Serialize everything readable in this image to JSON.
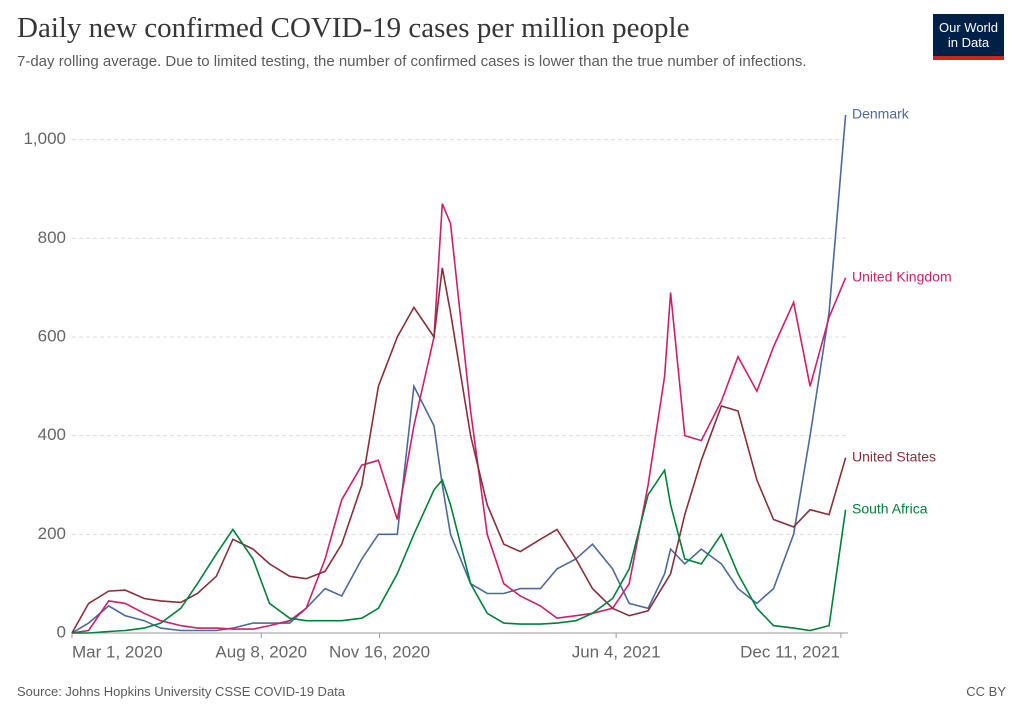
{
  "chart_data": {
    "type": "line",
    "title": "Daily new confirmed COVID-19 cases per million people",
    "subtitle": "7-day rolling average. Due to limited testing, the number of confirmed cases is lower than the true number of infections.",
    "source": "Source: Johns Hopkins University CSSE COVID-19 Data",
    "license": "CC BY",
    "logo": [
      "Our World",
      "in Data"
    ],
    "x": [
      "2020-03-01",
      "2020-03-15",
      "2020-04-01",
      "2020-04-15",
      "2020-05-01",
      "2020-05-15",
      "2020-06-01",
      "2020-06-15",
      "2020-07-01",
      "2020-07-15",
      "2020-08-01",
      "2020-08-15",
      "2020-09-01",
      "2020-09-15",
      "2020-10-01",
      "2020-10-15",
      "2020-11-01",
      "2020-11-15",
      "2020-12-01",
      "2020-12-15",
      "2021-01-01",
      "2021-01-08",
      "2021-01-15",
      "2021-02-01",
      "2021-02-15",
      "2021-03-01",
      "2021-03-15",
      "2021-04-01",
      "2021-04-15",
      "2021-05-01",
      "2021-05-15",
      "2021-06-01",
      "2021-06-15",
      "2021-07-01",
      "2021-07-15",
      "2021-07-20",
      "2021-08-01",
      "2021-08-15",
      "2021-09-01",
      "2021-09-15",
      "2021-10-01",
      "2021-10-15",
      "2021-11-01",
      "2021-11-15",
      "2021-12-01",
      "2021-12-15"
    ],
    "series": [
      {
        "name": "Denmark",
        "color": "#4c6a9c",
        "values": [
          0,
          20,
          55,
          35,
          25,
          10,
          5,
          5,
          5,
          10,
          20,
          20,
          20,
          50,
          90,
          75,
          150,
          200,
          200,
          500,
          420,
          300,
          200,
          100,
          80,
          80,
          90,
          90,
          130,
          150,
          180,
          130,
          60,
          50,
          120,
          170,
          140,
          170,
          140,
          90,
          60,
          90,
          200,
          400,
          650,
          1050
        ]
      },
      {
        "name": "United Kingdom",
        "color": "#ce1f6a",
        "values": [
          0,
          5,
          65,
          60,
          40,
          25,
          15,
          10,
          10,
          8,
          8,
          15,
          25,
          50,
          150,
          270,
          340,
          350,
          230,
          420,
          600,
          870,
          830,
          450,
          200,
          100,
          75,
          55,
          30,
          35,
          40,
          50,
          100,
          300,
          520,
          690,
          400,
          390,
          470,
          560,
          490,
          580,
          670,
          500,
          640,
          720
        ]
      },
      {
        "name": "United States",
        "color": "#883039",
        "values": [
          0,
          60,
          85,
          87,
          70,
          65,
          62,
          80,
          115,
          190,
          170,
          140,
          115,
          110,
          125,
          180,
          300,
          500,
          600,
          660,
          600,
          740,
          650,
          400,
          260,
          180,
          165,
          190,
          210,
          150,
          90,
          50,
          35,
          45,
          100,
          120,
          240,
          350,
          460,
          450,
          310,
          230,
          215,
          250,
          240,
          355
        ]
      },
      {
        "name": "South Africa",
        "color": "#00813a",
        "values": [
          0,
          0,
          3,
          5,
          10,
          20,
          50,
          100,
          160,
          210,
          150,
          60,
          30,
          25,
          25,
          25,
          30,
          50,
          120,
          200,
          290,
          310,
          260,
          100,
          40,
          20,
          18,
          18,
          20,
          25,
          40,
          70,
          130,
          280,
          330,
          260,
          150,
          140,
          200,
          120,
          50,
          15,
          10,
          5,
          15,
          250
        ]
      }
    ],
    "xlim": [
      "2020-03-01",
      "2021-12-17"
    ],
    "xticks": [
      {
        "value": "2020-03-01",
        "label": "Mar 1, 2020"
      },
      {
        "value": "2020-08-08",
        "label": "Aug 8, 2020"
      },
      {
        "value": "2020-11-16",
        "label": "Nov 16, 2020"
      },
      {
        "value": "2021-06-04",
        "label": "Jun 4, 2021"
      },
      {
        "value": "2021-12-11",
        "label": "Dec 11, 2021"
      }
    ],
    "ylim": [
      0,
      1060
    ],
    "yticks": [
      0,
      200,
      400,
      600,
      800,
      {
        "value": 1000,
        "label": "1,000"
      }
    ],
    "grid": true
  }
}
